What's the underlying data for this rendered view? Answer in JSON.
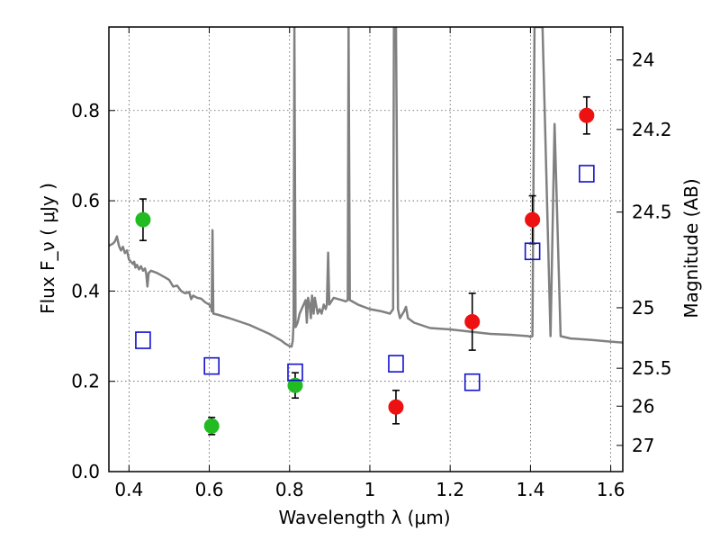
{
  "chart_data": {
    "type": "scatter",
    "xlabel": "Wavelength  λ (μm)",
    "ylabel": "Flux  F_ν  ( μJy )",
    "y2label": "Magnitude (AB)",
    "xlim": [
      0.35,
      1.63
    ],
    "ylim": [
      0.0,
      0.985
    ],
    "x_ticks": [
      0.4,
      0.6,
      0.8,
      1.0,
      1.2,
      1.4,
      1.6
    ],
    "x_tick_labels": [
      "0.4",
      "0.6",
      "0.8",
      "1",
      "1.2",
      "1.4",
      "1.6"
    ],
    "y_ticks": [
      0.0,
      0.2,
      0.4,
      0.6,
      0.8
    ],
    "y_tick_labels": [
      "0.0",
      "0.2",
      "0.4",
      "0.6",
      "0.8"
    ],
    "y2_ticks": [
      {
        "flux": 0.912,
        "label": "24"
      },
      {
        "flux": 0.758,
        "label": "24.2"
      },
      {
        "flux": 0.575,
        "label": "24.5"
      },
      {
        "flux": 0.363,
        "label": "25"
      },
      {
        "flux": 0.229,
        "label": "25.5"
      },
      {
        "flux": 0.145,
        "label": "26"
      },
      {
        "flux": 0.058,
        "label": "27"
      }
    ],
    "grid": true,
    "colors": {
      "green": "#22bb22",
      "red": "#ee1111",
      "blue": "#1111cc",
      "model": "#808080"
    },
    "series": [
      {
        "marker": "circle",
        "color": "#22bb22",
        "points": [
          {
            "x": 0.435,
            "y": 0.558,
            "err": 0.046
          },
          {
            "x": 0.606,
            "y": 0.101,
            "err": 0.019
          },
          {
            "x": 0.814,
            "y": 0.191,
            "err": 0.028
          }
        ]
      },
      {
        "marker": "circle",
        "color": "#ee1111",
        "points": [
          {
            "x": 1.065,
            "y": 0.143,
            "err": 0.037
          },
          {
            "x": 1.255,
            "y": 0.332,
            "err": 0.063
          },
          {
            "x": 1.405,
            "y": 0.558,
            "err": 0.053
          },
          {
            "x": 1.54,
            "y": 0.789,
            "err": 0.041
          }
        ]
      },
      {
        "marker": "square",
        "color": "#1111cc",
        "points": [
          {
            "x": 0.435,
            "y": 0.291
          },
          {
            "x": 0.606,
            "y": 0.234
          },
          {
            "x": 0.814,
            "y": 0.22
          },
          {
            "x": 1.065,
            "y": 0.239
          },
          {
            "x": 1.255,
            "y": 0.198
          },
          {
            "x": 1.405,
            "y": 0.488
          },
          {
            "x": 1.54,
            "y": 0.66
          }
        ]
      }
    ],
    "model_spectrum": [
      [
        0.35,
        0.5
      ],
      [
        0.36,
        0.505
      ],
      [
        0.365,
        0.51
      ],
      [
        0.37,
        0.521
      ],
      [
        0.375,
        0.5
      ],
      [
        0.38,
        0.49
      ],
      [
        0.385,
        0.498
      ],
      [
        0.39,
        0.484
      ],
      [
        0.395,
        0.49
      ],
      [
        0.4,
        0.47
      ],
      [
        0.405,
        0.465
      ],
      [
        0.41,
        0.46
      ],
      [
        0.413,
        0.465
      ],
      [
        0.416,
        0.452
      ],
      [
        0.42,
        0.458
      ],
      [
        0.425,
        0.448
      ],
      [
        0.43,
        0.455
      ],
      [
        0.435,
        0.445
      ],
      [
        0.44,
        0.45
      ],
      [
        0.443,
        0.438
      ],
      [
        0.446,
        0.41
      ],
      [
        0.449,
        0.44
      ],
      [
        0.455,
        0.445
      ],
      [
        0.47,
        0.44
      ],
      [
        0.49,
        0.43
      ],
      [
        0.5,
        0.425
      ],
      [
        0.51,
        0.41
      ],
      [
        0.52,
        0.412
      ],
      [
        0.53,
        0.4
      ],
      [
        0.54,
        0.395
      ],
      [
        0.55,
        0.398
      ],
      [
        0.555,
        0.382
      ],
      [
        0.56,
        0.39
      ],
      [
        0.57,
        0.385
      ],
      [
        0.58,
        0.383
      ],
      [
        0.59,
        0.375
      ],
      [
        0.6,
        0.37
      ],
      [
        0.605,
        0.363
      ],
      [
        0.606,
        0.355
      ],
      [
        0.608,
        0.535
      ],
      [
        0.61,
        0.35
      ],
      [
        0.62,
        0.348
      ],
      [
        0.65,
        0.34
      ],
      [
        0.7,
        0.325
      ],
      [
        0.75,
        0.305
      ],
      [
        0.78,
        0.29
      ],
      [
        0.79,
        0.283
      ],
      [
        0.8,
        0.278
      ],
      [
        0.805,
        0.277
      ],
      [
        0.808,
        0.29
      ],
      [
        0.81,
        0.33
      ],
      [
        0.812,
        0.985
      ],
      [
        0.815,
        0.32
      ],
      [
        0.82,
        0.33
      ],
      [
        0.825,
        0.35
      ],
      [
        0.83,
        0.36
      ],
      [
        0.84,
        0.38
      ],
      [
        0.843,
        0.33
      ],
      [
        0.846,
        0.385
      ],
      [
        0.85,
        0.37
      ],
      [
        0.853,
        0.34
      ],
      [
        0.856,
        0.39
      ],
      [
        0.86,
        0.35
      ],
      [
        0.863,
        0.385
      ],
      [
        0.87,
        0.35
      ],
      [
        0.875,
        0.36
      ],
      [
        0.88,
        0.35
      ],
      [
        0.885,
        0.37
      ],
      [
        0.89,
        0.36
      ],
      [
        0.893,
        0.37
      ],
      [
        0.896,
        0.485
      ],
      [
        0.899,
        0.37
      ],
      [
        0.91,
        0.385
      ],
      [
        0.93,
        0.38
      ],
      [
        0.94,
        0.377
      ],
      [
        0.945,
        0.38
      ],
      [
        0.947,
        0.985
      ],
      [
        0.95,
        0.38
      ],
      [
        0.97,
        0.37
      ],
      [
        1.0,
        0.36
      ],
      [
        1.03,
        0.355
      ],
      [
        1.05,
        0.35
      ],
      [
        1.058,
        0.36
      ],
      [
        1.06,
        0.985
      ],
      [
        1.065,
        0.985
      ],
      [
        1.07,
        0.36
      ],
      [
        1.075,
        0.34
      ],
      [
        1.085,
        0.355
      ],
      [
        1.09,
        0.365
      ],
      [
        1.095,
        0.34
      ],
      [
        1.11,
        0.33
      ],
      [
        1.15,
        0.318
      ],
      [
        1.2,
        0.315
      ],
      [
        1.25,
        0.31
      ],
      [
        1.3,
        0.305
      ],
      [
        1.35,
        0.303
      ],
      [
        1.395,
        0.3
      ],
      [
        1.4,
        0.298
      ],
      [
        1.405,
        0.3
      ],
      [
        1.41,
        0.985
      ],
      [
        1.43,
        0.985
      ],
      [
        1.45,
        0.3
      ],
      [
        1.46,
        0.77
      ],
      [
        1.475,
        0.3
      ],
      [
        1.5,
        0.295
      ],
      [
        1.55,
        0.292
      ],
      [
        1.6,
        0.288
      ],
      [
        1.63,
        0.286
      ]
    ]
  }
}
